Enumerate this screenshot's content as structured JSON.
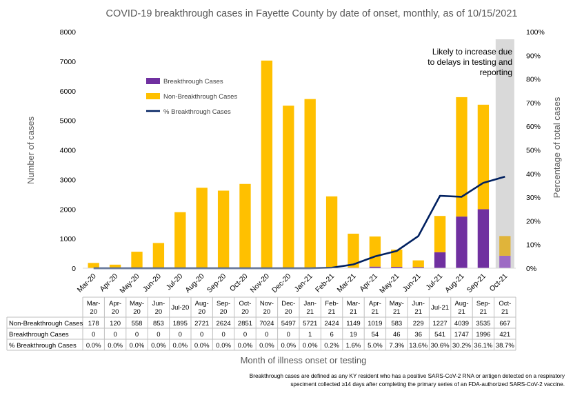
{
  "chart_data": {
    "type": "bar",
    "stacked": true,
    "title": "COVID-19 breakthrough cases in Fayette County by date of onset, monthly, as of 10/15/2021",
    "xlabel": "Month of illness onset or testing",
    "ylabel": "Number of cases",
    "y2label": "Percentage of total cases",
    "ylim": [
      0,
      8000
    ],
    "y2lim": [
      0,
      100
    ],
    "yticks": [
      "0",
      "1000",
      "2000",
      "3000",
      "4000",
      "5000",
      "6000",
      "7000",
      "8000"
    ],
    "y2ticks": [
      "0%",
      "10%",
      "20%",
      "30%",
      "40%",
      "50%",
      "60%",
      "70%",
      "80%",
      "90%",
      "100%"
    ],
    "categories": [
      "Mar-20",
      "Apr-20",
      "May-20",
      "Jun-20",
      "Jul-20",
      "Aug-20",
      "Sep-20",
      "Oct-20",
      "Nov-20",
      "Dec-20",
      "Jan-21",
      "Feb-21",
      "Mar-21",
      "Apr-21",
      "May-21",
      "Jun-21",
      "Jul-21",
      "Aug-21",
      "Sep-21",
      "Oct-21"
    ],
    "table_categories": [
      "Mar-\n20",
      "Apr-\n20",
      "May-\n20",
      "Jun-\n20",
      "Jul-20",
      "Aug-\n20",
      "Sep-\n20",
      "Oct-\n20",
      "Nov-\n20",
      "Dec-\n20",
      "Jan-\n21",
      "Feb-\n21",
      "Mar-\n21",
      "Apr-\n21",
      "May-\n21",
      "Jun-\n21",
      "Jul-21",
      "Aug-\n21",
      "Sep-\n21",
      "Oct-\n21"
    ],
    "series": [
      {
        "name": "Breakthrough Cases",
        "type": "bar",
        "color": "#7030A0",
        "values": [
          0,
          0,
          0,
          0,
          0,
          0,
          0,
          0,
          0,
          0,
          1,
          6,
          19,
          54,
          46,
          36,
          541,
          1747,
          1996,
          421
        ]
      },
      {
        "name": "Non-Breakthrough Cases",
        "type": "bar",
        "color": "#FFC000",
        "values": [
          178,
          120,
          558,
          853,
          1895,
          2721,
          2624,
          2851,
          7024,
          5497,
          5721,
          2424,
          1149,
          1019,
          583,
          229,
          1227,
          4039,
          3535,
          667
        ]
      },
      {
        "name": "% Breakthrough Cases",
        "type": "line",
        "axis": "secondary",
        "color": "#002060",
        "values": [
          0,
          0,
          0,
          0,
          0,
          0,
          0,
          0,
          0,
          0,
          0,
          0.2,
          1.6,
          5.0,
          7.3,
          13.6,
          30.6,
          30.2,
          36.1,
          38.7
        ]
      }
    ],
    "table_rows": [
      {
        "label": "Non-Breakthrough Cases",
        "cells": [
          "178",
          "120",
          "558",
          "853",
          "1895",
          "2721",
          "2624",
          "2851",
          "7024",
          "5497",
          "5721",
          "2424",
          "1149",
          "1019",
          "583",
          "229",
          "1227",
          "4039",
          "3535",
          "667"
        ]
      },
      {
        "label": "Breakthrough Cases",
        "cells": [
          "0",
          "0",
          "0",
          "0",
          "0",
          "0",
          "0",
          "0",
          "0",
          "0",
          "1",
          "6",
          "19",
          "54",
          "46",
          "36",
          "541",
          "1747",
          "1996",
          "421"
        ]
      },
      {
        "label": "% Breakthrough Cases",
        "cells": [
          "0.0%",
          "0.0%",
          "0.0%",
          "0.0%",
          "0.0%",
          "0.0%",
          "0.0%",
          "0.0%",
          "0.0%",
          "0.0%",
          "0.0%",
          "0.2%",
          "1.6%",
          "5.0%",
          "7.3%",
          "13.6%",
          "30.6%",
          "30.2%",
          "36.1%",
          "38.7%"
        ]
      }
    ],
    "annotation": "Likely to increase due to delays in testing and reporting",
    "annotation_lines": [
      "Likely to increase due",
      "to delays in testing and",
      "reporting"
    ],
    "shaded_category": "Oct-21",
    "legend_position": "top-left",
    "footnote_lines": [
      "Breakthrough cases are defined as any KY resident who has a positive SARS-CoV-2 RNA or antigen detected on a respiratory",
      "speciment collected ≥14 days after completing the primary series of an FDA-authorized SARS-CoV-2 vaccine."
    ]
  }
}
